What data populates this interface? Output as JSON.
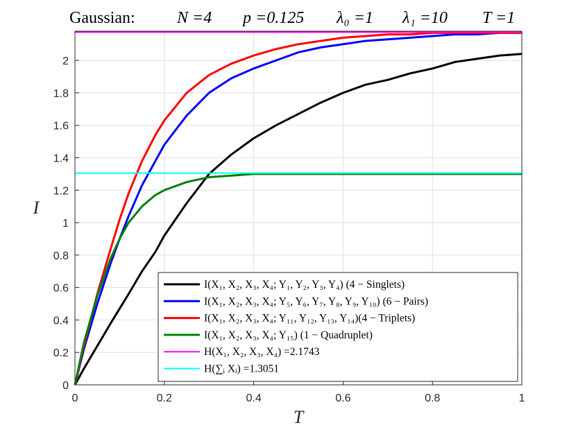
{
  "chart_data": {
    "type": "line",
    "title_parts": [
      "Gaussian:",
      "N =4",
      "p =0.125",
      "λ₀ =1",
      "λ₁ =10",
      "T =1"
    ],
    "xlabel": "T",
    "ylabel": "I",
    "xlim": [
      0,
      1
    ],
    "ylim": [
      0,
      2.18
    ],
    "xticks": [
      0,
      0.2,
      0.4,
      0.6,
      0.8,
      1
    ],
    "xtick_labels": [
      "0",
      "0.2",
      "0.4",
      "0.6",
      "0.8",
      "1"
    ],
    "yticks": [
      0,
      0.2,
      0.4,
      0.6,
      0.8,
      1,
      1.2,
      1.4,
      1.6,
      1.8,
      2
    ],
    "ytick_labels": [
      "0",
      "0.2",
      "0.4",
      "0.6",
      "0.8",
      "1",
      "1.2",
      "1.4",
      "1.6",
      "1.8",
      "2"
    ],
    "grid": true,
    "legend_position": "bottom-right",
    "x": [
      0,
      0.02,
      0.05,
      0.08,
      0.1,
      0.12,
      0.15,
      0.18,
      0.2,
      0.25,
      0.3,
      0.35,
      0.4,
      0.45,
      0.5,
      0.55,
      0.6,
      0.65,
      0.7,
      0.75,
      0.8,
      0.85,
      0.9,
      0.95,
      1.0
    ],
    "series": [
      {
        "name": "I(X₁, X₂, X₃, X₄; Y₁, Y₂, Y₃, Y₄)   (4 − Singlets)",
        "color": "#000000",
        "values": [
          0,
          0.1,
          0.24,
          0.38,
          0.47,
          0.56,
          0.7,
          0.82,
          0.92,
          1.12,
          1.3,
          1.42,
          1.52,
          1.6,
          1.67,
          1.74,
          1.8,
          1.85,
          1.88,
          1.92,
          1.95,
          1.99,
          2.01,
          2.03,
          2.04
        ]
      },
      {
        "name": "I(X₁, X₂, X₃, X₄; Y₅, Y₆, Y₇, Y₈, Y₉, Y₁₀)   (6 − Pairs)",
        "color": "#0000ff",
        "values": [
          0,
          0.22,
          0.5,
          0.75,
          0.9,
          1.04,
          1.23,
          1.38,
          1.48,
          1.66,
          1.8,
          1.89,
          1.95,
          2.0,
          2.05,
          2.08,
          2.1,
          2.12,
          2.13,
          2.14,
          2.15,
          2.16,
          2.16,
          2.17,
          2.17
        ]
      },
      {
        "name": "I(X₁, X₂, X₃, X₄; Y₁₁, Y₁₂, Y₁₃, Y₁₄)(4 − Triplets)",
        "color": "#ff0000",
        "values": [
          0,
          0.24,
          0.56,
          0.84,
          1.02,
          1.18,
          1.38,
          1.54,
          1.63,
          1.8,
          1.91,
          1.98,
          2.03,
          2.07,
          2.1,
          2.12,
          2.14,
          2.15,
          2.16,
          2.16,
          2.17,
          2.17,
          2.17,
          2.17,
          2.17
        ]
      },
      {
        "name": "I(X₁, X₂, X₃, X₄; Y₁₅)   (1 − Quadruplet)",
        "color": "#008000",
        "values": [
          0,
          0.26,
          0.55,
          0.78,
          0.9,
          1.0,
          1.1,
          1.17,
          1.2,
          1.25,
          1.28,
          1.29,
          1.3,
          1.3,
          1.3,
          1.3,
          1.3,
          1.3,
          1.3,
          1.3,
          1.3,
          1.3,
          1.3,
          1.3,
          1.3
        ]
      },
      {
        "name": "H(X₁, X₂, X₃, X₄) =2.1743",
        "color": "#ff00ff",
        "constant": 2.1743
      },
      {
        "name": "H(∑ᵢ Xᵢ) =1.3051",
        "color": "#00ffff",
        "constant": 1.3051
      }
    ]
  }
}
